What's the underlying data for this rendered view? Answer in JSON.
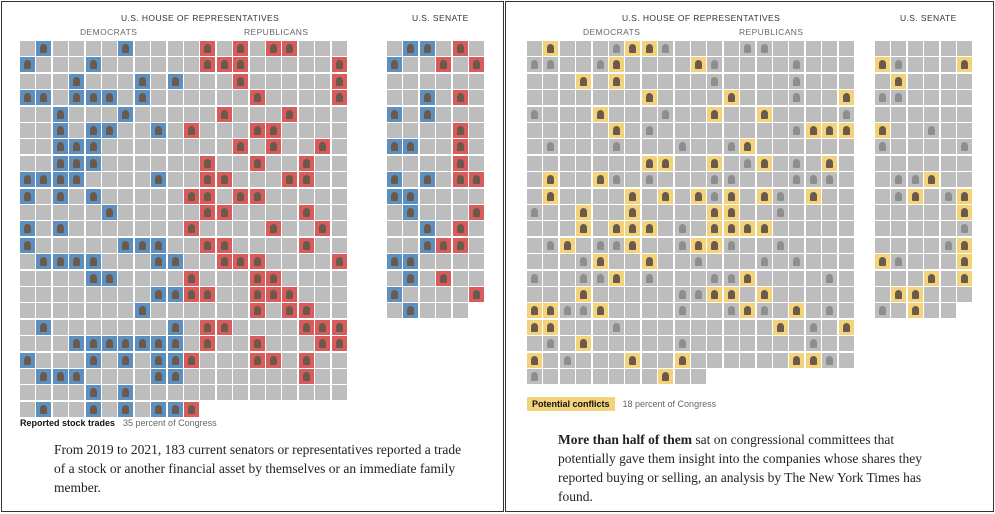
{
  "left": {
    "house_title": "U.S. HOUSE OF REPRESENTATIVES",
    "senate_title": "U.S. SENATE",
    "dem_label": "DEMOCRATS",
    "rep_label": "REPUBLICANS",
    "legend_key": "Reported stock trades",
    "legend_pct": "35 percent of Congress",
    "caption": "From 2019 to 2021, 183 current senators or representatives reported a trade of a stock or another financial asset by themselves or an immediate family member."
  },
  "right": {
    "house_title": "U.S. HOUSE OF REPRESENTATIVES",
    "senate_title": "U.S. SENATE",
    "dem_label": "DEMOCRATS",
    "rep_label": "REPUBLICANS",
    "legend_key": "Potential conflicts",
    "legend_pct": "18 percent of Congress",
    "caption_bold": "More than half of them",
    "caption_rest": " sat on congressional committees that potentially gave them insight into the companies whose shares they reported buying or selling, an analysis by The New York Times has found."
  },
  "colors": {
    "democrat": "#5d8fbf",
    "republican": "#d85c5c",
    "conflict": "#f2d27a",
    "empty": "#bdbdbd"
  }
}
